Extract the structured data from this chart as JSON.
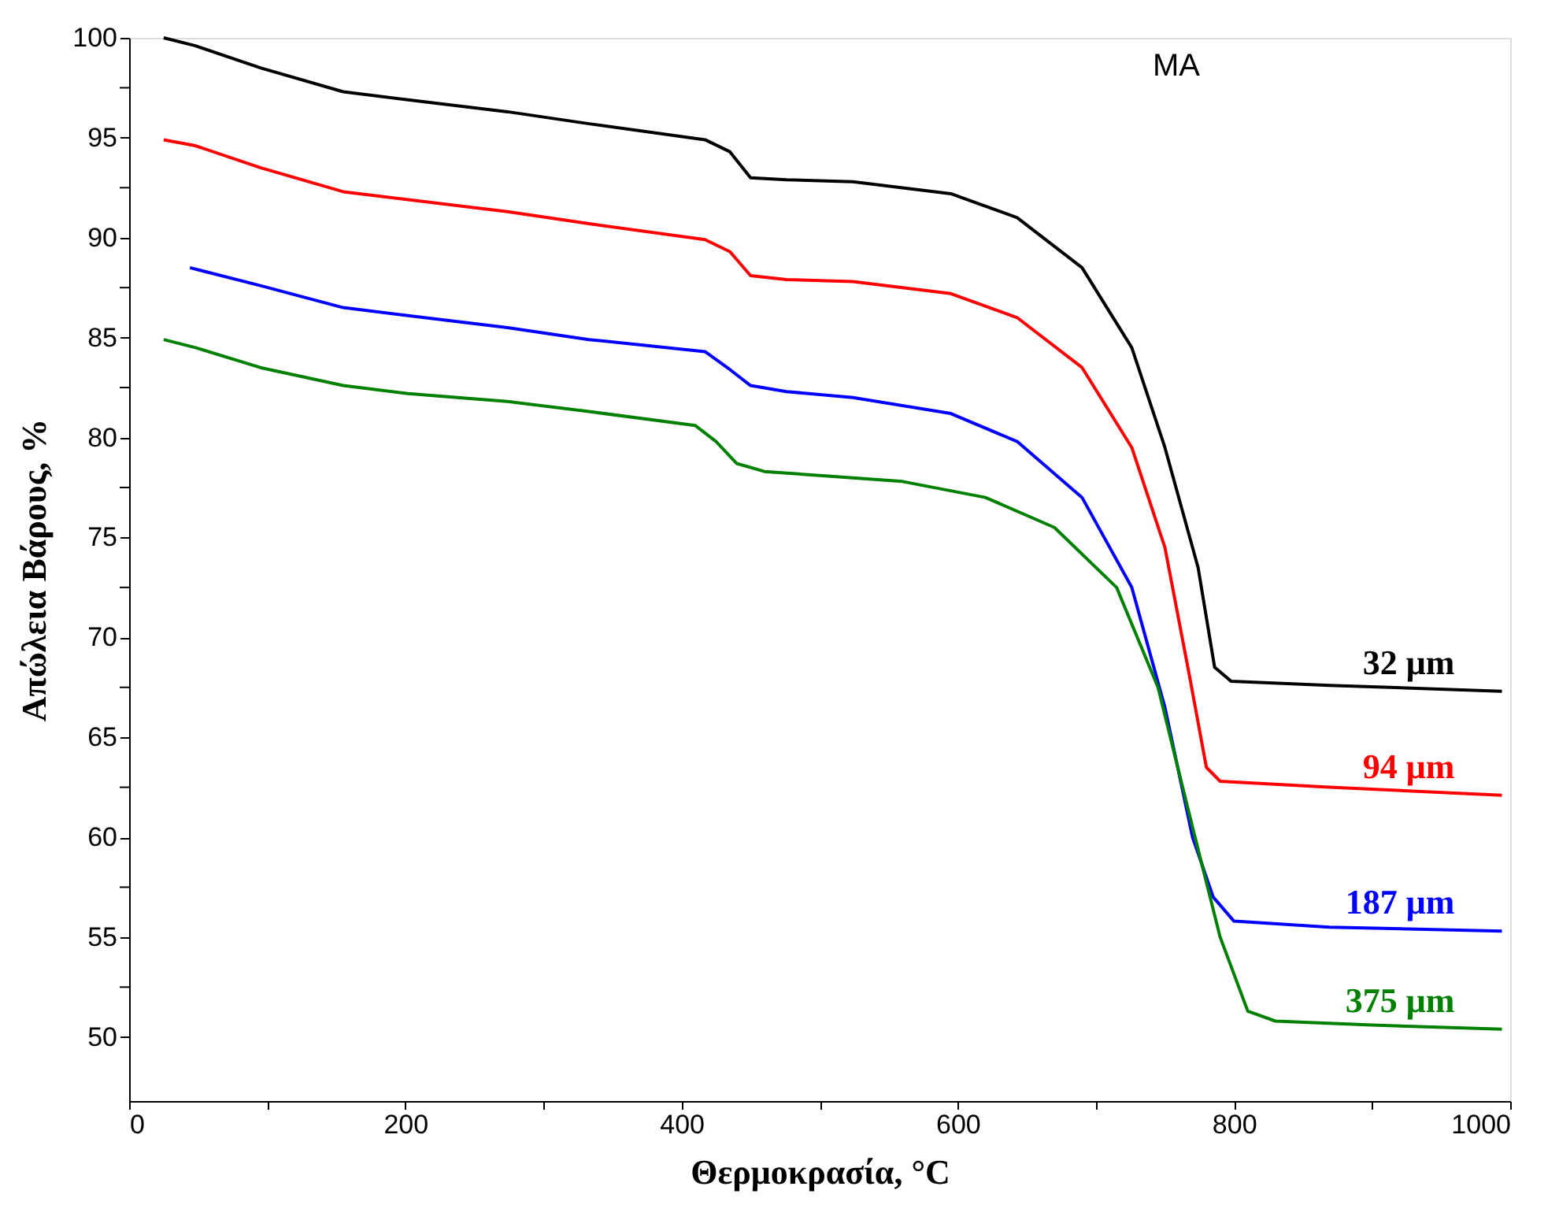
{
  "chart_data": {
    "type": "line",
    "xlabel": "Θερμοκρασία, °C",
    "ylabel": "Απώλεια Βάρους, %",
    "annotations": [
      "MA"
    ],
    "xlim": [
      0,
      1000
    ],
    "ylim": [
      46.8,
      100
    ],
    "xticks": [
      0,
      {
        "value": 100,
        "label": null
      },
      200,
      {
        "value": 300,
        "label": null
      },
      400,
      {
        "value": 500,
        "label": null
      },
      600,
      {
        "value": 700,
        "label": null
      },
      800,
      {
        "value": 900,
        "label": null
      },
      1000
    ],
    "yticks": [
      50,
      {
        "value": 52.5,
        "label": null
      },
      55,
      {
        "value": 57.5,
        "label": null
      },
      60,
      {
        "value": 62.5,
        "label": null
      },
      65,
      {
        "value": 67.5,
        "label": null
      },
      70,
      {
        "value": 72.5,
        "label": null
      },
      75,
      {
        "value": 77.5,
        "label": null
      },
      80,
      {
        "value": 82.5,
        "label": null
      },
      85,
      {
        "value": 87.5,
        "label": null
      },
      90,
      {
        "value": 92.5,
        "label": null
      },
      95,
      {
        "value": 97.5,
        "label": null
      },
      100
    ],
    "grid": false,
    "legend": false,
    "marker": "none",
    "line_style": "solid",
    "series": [
      {
        "name": "32 μm",
        "color": "#000000",
        "x": [
          25,
          48,
          95,
          155,
          202,
          274,
          333,
          417,
          435,
          450,
          476,
          524,
          595,
          643,
          690,
          726,
          750,
          774,
          786,
          798,
          869,
          994
        ],
        "values": [
          100,
          99.6,
          98.5,
          97.3,
          96.9,
          96.3,
          95.7,
          94.9,
          94.3,
          93.0,
          92.9,
          92.8,
          92.2,
          91.0,
          88.5,
          84.5,
          79.5,
          73.5,
          68.5,
          67.8,
          67.6,
          67.3
        ]
      },
      {
        "name": "94 μm",
        "color": "#ff0000",
        "x": [
          25,
          48,
          95,
          155,
          202,
          274,
          333,
          417,
          435,
          450,
          476,
          524,
          595,
          643,
          690,
          726,
          750,
          768,
          780,
          790,
          869,
          994
        ],
        "values": [
          94.9,
          94.6,
          93.5,
          92.3,
          91.9,
          91.3,
          90.7,
          89.9,
          89.3,
          88.1,
          87.9,
          87.8,
          87.2,
          86.0,
          83.5,
          79.5,
          74.5,
          68.0,
          63.5,
          62.8,
          62.5,
          62.1
        ]
      },
      {
        "name": "187 μm",
        "color": "#0000ff",
        "x": [
          44,
          95,
          155,
          202,
          274,
          333,
          417,
          435,
          450,
          476,
          524,
          595,
          643,
          690,
          726,
          750,
          770,
          785,
          800,
          869,
          994
        ],
        "values": [
          88.5,
          87.6,
          86.5,
          86.1,
          85.5,
          84.9,
          84.3,
          83.4,
          82.6,
          82.3,
          82.0,
          81.2,
          79.8,
          77.0,
          72.5,
          66.5,
          60.0,
          57.0,
          55.8,
          55.5,
          55.3
        ]
      },
      {
        "name": "375 μm",
        "color": "#008000",
        "x": [
          25,
          48,
          95,
          155,
          202,
          274,
          333,
          410,
          425,
          440,
          460,
          500,
          560,
          620,
          670,
          715,
          745,
          770,
          790,
          810,
          830,
          900,
          994
        ],
        "values": [
          84.9,
          84.5,
          83.5,
          82.6,
          82.2,
          81.8,
          81.3,
          80.6,
          79.8,
          78.7,
          78.3,
          78.1,
          77.8,
          77.0,
          75.5,
          72.5,
          67.5,
          60.5,
          55.0,
          51.3,
          50.8,
          50.6,
          50.4
        ]
      }
    ]
  }
}
